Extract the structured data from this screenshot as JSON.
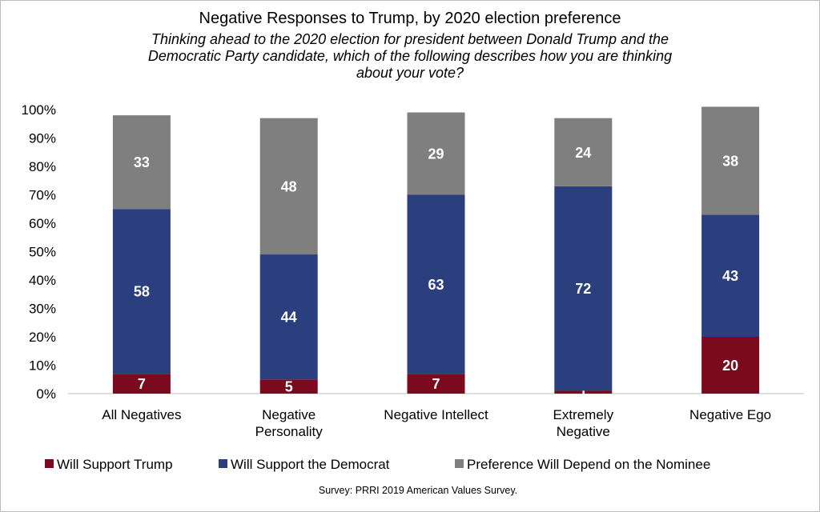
{
  "chart_data": {
    "type": "bar",
    "stacked": true,
    "title": "Negative Responses to Trump, by 2020 election preference",
    "subtitle_lines": [
      "Thinking ahead to the 2020 election for president between Donald Trump and the",
      "Democratic Party candidate, which of the following describes how you are thinking",
      "about your vote?"
    ],
    "categories": [
      [
        "All Negatives"
      ],
      [
        "Negative",
        "Personality"
      ],
      [
        "Negative Intellect"
      ],
      [
        "Extremely",
        "Negative"
      ],
      [
        "Negative Ego"
      ]
    ],
    "series": [
      {
        "name": "Will Support Trump",
        "color": "#7b0a1e",
        "values": [
          7,
          5,
          7,
          1,
          20
        ]
      },
      {
        "name": "Will Support the Democrat",
        "color": "#2b3f7e",
        "values": [
          58,
          44,
          63,
          72,
          43
        ]
      },
      {
        "name": "Preference Will Depend on the Nominee",
        "color": "#7f7f7f",
        "values": [
          33,
          48,
          29,
          24,
          38
        ]
      }
    ],
    "ylim": [
      0,
      100
    ],
    "yticks": [
      "0%",
      "10%",
      "20%",
      "30%",
      "40%",
      "50%",
      "60%",
      "70%",
      "80%",
      "90%",
      "100%"
    ],
    "grid": false,
    "legend_position": "bottom",
    "label_color": "#ffffff"
  },
  "footer": {
    "source": "Survey: PRRI 2019 American Values Survey."
  }
}
